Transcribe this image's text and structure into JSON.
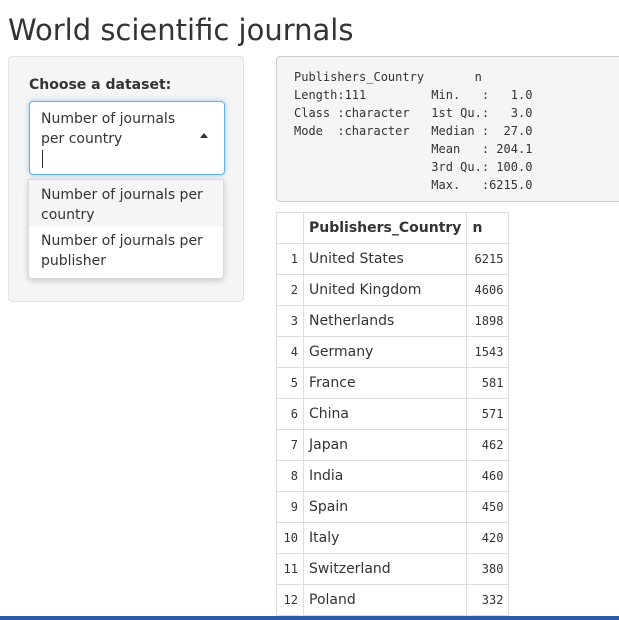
{
  "page": {
    "title": "World scientific journals"
  },
  "sidebar": {
    "label": "Choose a dataset:",
    "selected": "Number of journals per country",
    "options": [
      "Number of journals per country",
      "Number of journals per publisher"
    ]
  },
  "summary": {
    "lines": [
      "Publishers_Country       n",
      "Length:111         Min.   :   1.0",
      "Class :character   1st Qu.:   3.0",
      "Mode  :character   Median :  27.0",
      "                   Mean   : 204.1",
      "                   3rd Qu.: 100.0",
      "                   Max.   :6215.0"
    ]
  },
  "table": {
    "headers": [
      "",
      "Publishers_Country",
      "n"
    ],
    "rows": [
      [
        "1",
        "United States",
        "6215"
      ],
      [
        "2",
        "United Kingdom",
        "4606"
      ],
      [
        "3",
        "Netherlands",
        "1898"
      ],
      [
        "4",
        "Germany",
        "1543"
      ],
      [
        "5",
        "France",
        "581"
      ],
      [
        "6",
        "China",
        "571"
      ],
      [
        "7",
        "Japan",
        "462"
      ],
      [
        "8",
        "India",
        "460"
      ],
      [
        "9",
        "Spain",
        "450"
      ],
      [
        "10",
        "Italy",
        "420"
      ],
      [
        "11",
        "Switzerland",
        "380"
      ],
      [
        "12",
        "Poland",
        "332"
      ]
    ]
  }
}
